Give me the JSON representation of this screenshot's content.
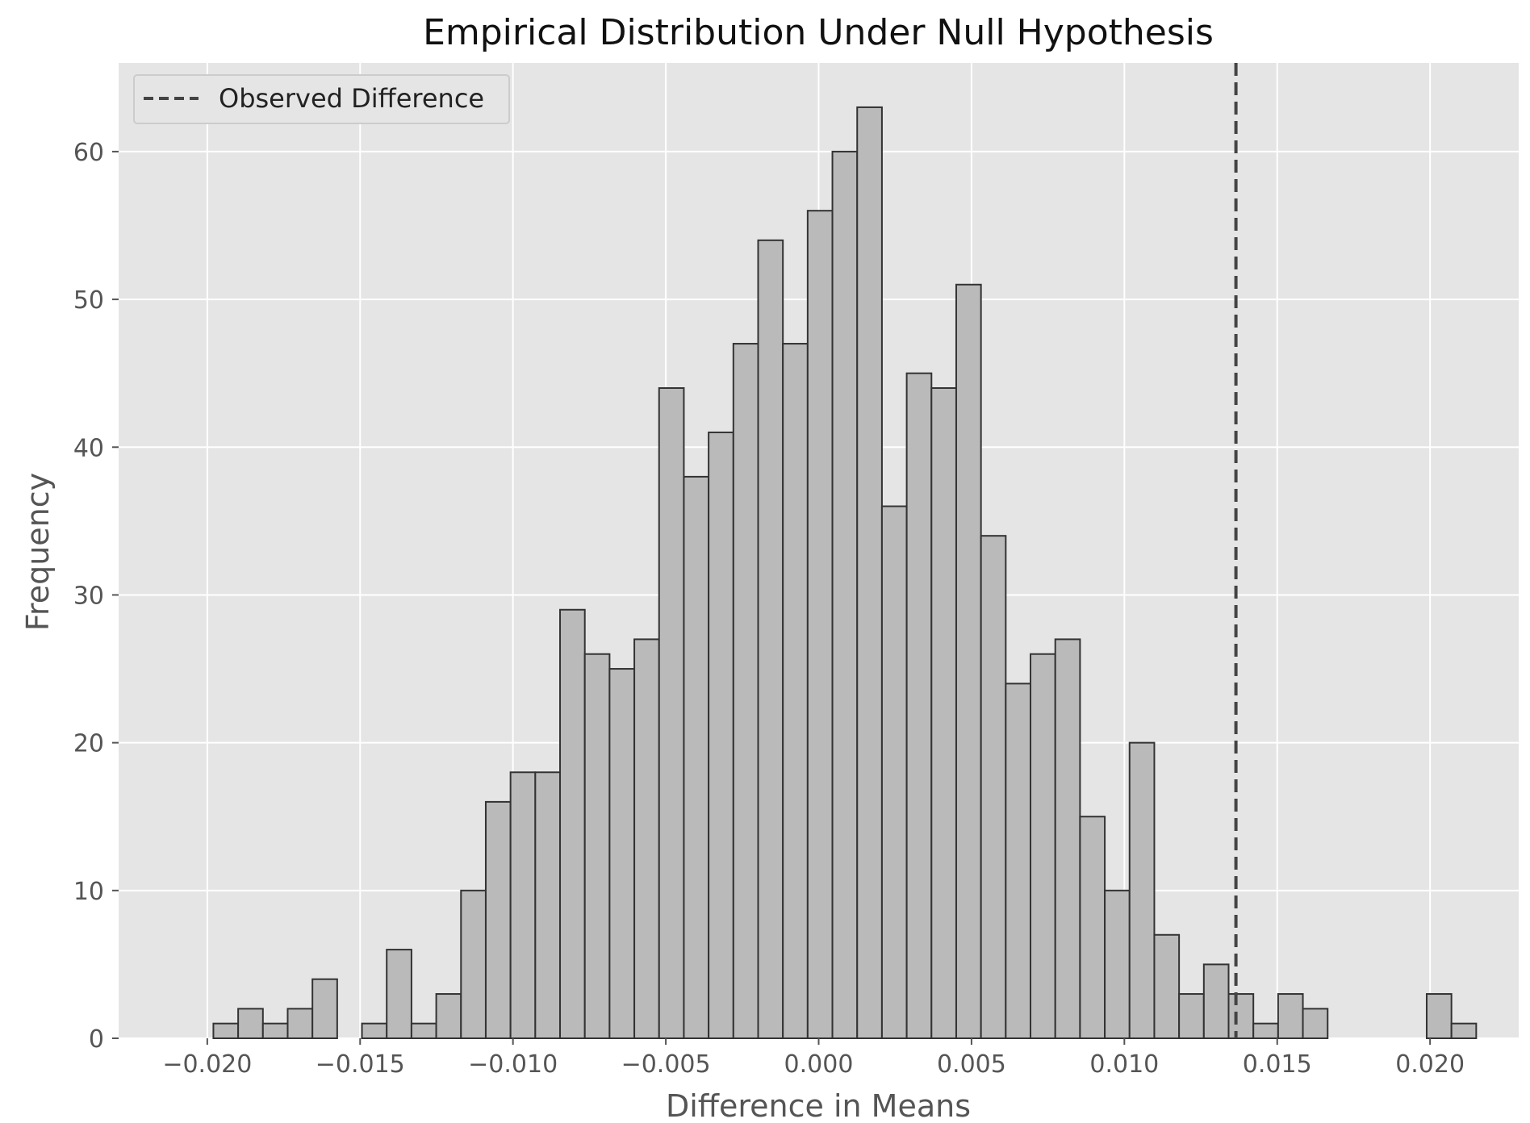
{
  "chart_data": {
    "type": "bar",
    "title": "Empirical Distribution Under Null Hypothesis",
    "xlabel": "Difference in Means",
    "ylabel": "Frequency",
    "xlim": [
      -0.0229,
      0.0229
    ],
    "ylim": [
      0,
      66
    ],
    "x_ticks": [
      -0.02,
      -0.015,
      -0.01,
      -0.005,
      0.0,
      0.005,
      0.01,
      0.015,
      0.02
    ],
    "x_tick_labels": [
      "−0.020",
      "−0.015",
      "−0.010",
      "−0.005",
      "0.000",
      "0.005",
      "0.010",
      "0.015",
      "0.020"
    ],
    "y_ticks": [
      0,
      10,
      20,
      30,
      40,
      50,
      60
    ],
    "y_tick_labels": [
      "0",
      "10",
      "20",
      "30",
      "40",
      "50",
      "60"
    ],
    "bin_start": -0.0198,
    "bin_width": 0.00081,
    "values": [
      1,
      2,
      1,
      2,
      4,
      0,
      1,
      6,
      1,
      3,
      10,
      16,
      18,
      18,
      29,
      26,
      25,
      27,
      44,
      38,
      41,
      47,
      54,
      47,
      56,
      60,
      63,
      36,
      45,
      44,
      51,
      34,
      24,
      26,
      27,
      15,
      10,
      20,
      7,
      3,
      5,
      3,
      1,
      3,
      2,
      0,
      0,
      0,
      0,
      3,
      1
    ],
    "observed_difference": 0.01365,
    "legend": {
      "placement": "top-left",
      "entries": [
        {
          "label": "Observed Difference",
          "style": "dashed"
        }
      ]
    },
    "grid": true,
    "colors": {
      "background": "#e5e5e5",
      "grid": "#ffffff",
      "bar_fill": "#bababa",
      "bar_edge": "#333333",
      "observed_line": "#444444"
    }
  }
}
